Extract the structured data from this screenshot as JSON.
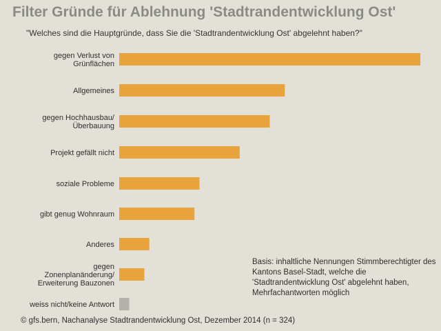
{
  "title": "Filter Gründe für Ablehnung 'Stadtrandentwicklung Ost'",
  "question": "\"Welches sind die Hauptgründe, dass Sie die 'Stadtrandentwicklung Ost' abgelehnt haben?\"",
  "note": "Basis: inhaltliche Nennungen Stimmberechtigter des Kantons Basel-Stadt, welche die 'Stadtrandentwicklung Ost' abgelehnt haben, Mehrfachantworten möglich",
  "footer": "© gfs.bern, Nachanalyse Stadtrandentwicklung Ost, Dezember 2014 (n = 324)",
  "chart_data": {
    "type": "bar",
    "orientation": "horizontal",
    "categories": [
      [
        "gegen Verlust von",
        "Grünflächen"
      ],
      [
        "Allgemeines"
      ],
      [
        "gegen Hochhausbau/",
        "Überbauung"
      ],
      [
        "Projekt gefällt nicht"
      ],
      [
        "soziale Probleme"
      ],
      [
        "gibt genug Wohnraum"
      ],
      [
        "Anderes"
      ],
      [
        "gegen",
        "Zonenplanänderung/",
        "Erweiterung Bauzonen"
      ],
      [
        "weiss nicht/keine Antwort"
      ]
    ],
    "values": [
      60,
      33,
      30,
      24,
      16,
      15,
      6,
      5,
      2
    ],
    "xlim": [
      0,
      60
    ],
    "colors": [
      "#e8a33d",
      "#e8a33d",
      "#e8a33d",
      "#e8a33d",
      "#e8a33d",
      "#e8a33d",
      "#e8a33d",
      "#e8a33d",
      "#b3b1aa"
    ],
    "grid": false,
    "axis_labels_shown": false
  }
}
